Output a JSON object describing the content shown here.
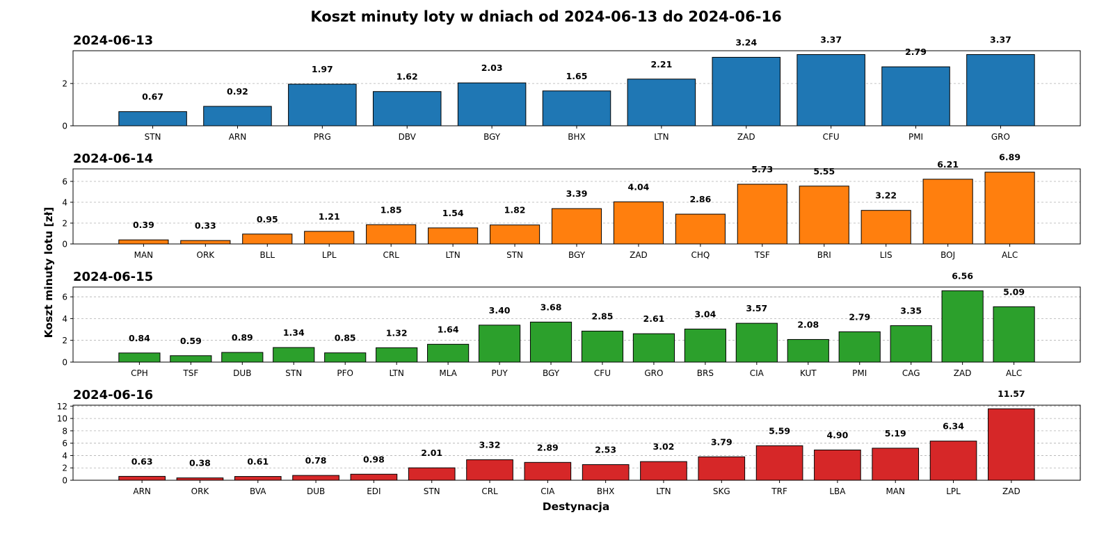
{
  "chart_data": {
    "type": "bar",
    "title": "Koszt minuty loty w dniach od 2024-06-13 do 2024-06-16",
    "ylabel": "Koszt minuty lotu [zł]",
    "xlabel": "Destynacja",
    "grid": true,
    "value_format": "2 decimals",
    "subplots": [
      {
        "title": "2024-06-13",
        "color": "#1f77b4",
        "ylim": [
          0,
          3.55
        ],
        "yticks": [
          0,
          2
        ],
        "categories": [
          "STN",
          "ARN",
          "PRG",
          "DBV",
          "BGY",
          "BHX",
          "LTN",
          "ZAD",
          "CFU",
          "PMI",
          "GRO"
        ],
        "values": [
          0.67,
          0.92,
          1.97,
          1.62,
          2.03,
          1.65,
          2.21,
          3.24,
          3.37,
          2.79,
          3.37
        ]
      },
      {
        "title": "2024-06-14",
        "color": "#ff7f0e",
        "ylim": [
          0,
          7.2
        ],
        "yticks": [
          0,
          2,
          4,
          6
        ],
        "categories": [
          "MAN",
          "ORK",
          "BLL",
          "LPL",
          "CRL",
          "LTN",
          "STN",
          "BGY",
          "ZAD",
          "CHQ",
          "TSF",
          "BRI",
          "LIS",
          "BOJ",
          "ALC"
        ],
        "values": [
          0.39,
          0.33,
          0.95,
          1.21,
          1.85,
          1.54,
          1.82,
          3.39,
          4.04,
          2.86,
          5.73,
          5.55,
          3.22,
          6.21,
          6.89
        ]
      },
      {
        "title": "2024-06-15",
        "color": "#2ca02c",
        "ylim": [
          0,
          6.9
        ],
        "yticks": [
          0,
          2,
          4,
          6
        ],
        "categories": [
          "CPH",
          "TSF",
          "DUB",
          "STN",
          "PFO",
          "LTN",
          "MLA",
          "PUY",
          "BGY",
          "CFU",
          "GRO",
          "BRS",
          "CIA",
          "KUT",
          "PMI",
          "CAG",
          "ZAD",
          "ALC"
        ],
        "values": [
          0.84,
          0.59,
          0.89,
          1.34,
          0.85,
          1.32,
          1.64,
          3.4,
          3.68,
          2.85,
          2.61,
          3.04,
          3.57,
          2.08,
          2.79,
          3.35,
          6.56,
          5.09
        ]
      },
      {
        "title": "2024-06-16",
        "color": "#d62728",
        "ylim": [
          0,
          12.15
        ],
        "yticks": [
          0,
          2,
          4,
          6,
          8,
          10,
          12
        ],
        "categories": [
          "ARN",
          "ORK",
          "BVA",
          "DUB",
          "EDI",
          "STN",
          "CRL",
          "CIA",
          "BHX",
          "LTN",
          "SKG",
          "TRF",
          "LBA",
          "MAN",
          "LPL",
          "ZAD"
        ],
        "values": [
          0.63,
          0.38,
          0.61,
          0.78,
          0.98,
          2.01,
          3.32,
          2.89,
          2.53,
          3.02,
          3.79,
          5.59,
          4.9,
          5.19,
          6.34,
          11.57
        ]
      }
    ]
  }
}
